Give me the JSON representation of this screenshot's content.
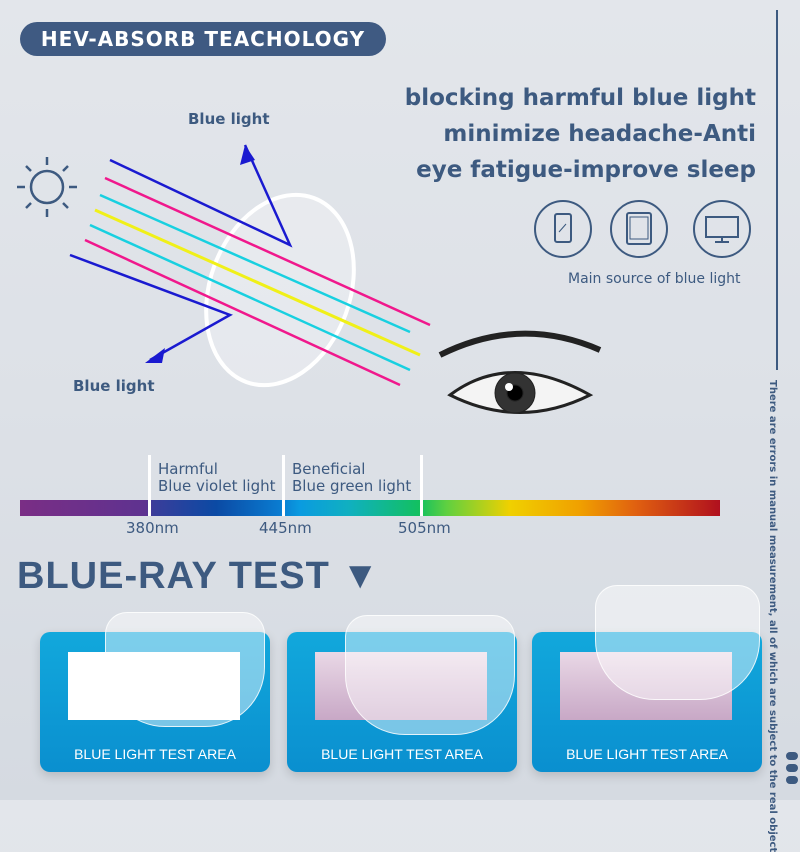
{
  "header": {
    "badge": "HEV-ABSORB TEACHOLOGY",
    "lines": [
      "blocking harmful blue light",
      "minimize headache-Anti",
      "eye fatigue-improve sleep"
    ]
  },
  "sources": {
    "icons": [
      "smartphone-icon",
      "tablet-icon",
      "monitor-icon"
    ],
    "caption": "Main source of blue light"
  },
  "diagram": {
    "reflected_top": "Blue light",
    "reflected_bottom": "Blue light"
  },
  "spectrum": {
    "harmful": [
      "Harmful",
      "Blue violet light"
    ],
    "beneficial": [
      "Beneficial",
      "Blue green light"
    ],
    "ticks": [
      "380nm",
      "445nm",
      "505nm"
    ]
  },
  "test": {
    "title": "BLUE-RAY TEST",
    "cards": [
      "BLUE LIGHT TEST AREA",
      "BLUE LIGHT TEST AREA",
      "BLUE LIGHT TEST AREA"
    ]
  },
  "disclaimer": "There are errors in manual measurement, all of which are subject to the real object",
  "colors": {
    "primary": "#3f5a82",
    "card": "#12a8dc",
    "ray_blue": "#1a1ad0",
    "ray_magenta": "#f0188c",
    "ray_cyan": "#18d0e0",
    "ray_yellow": "#f0f018"
  }
}
